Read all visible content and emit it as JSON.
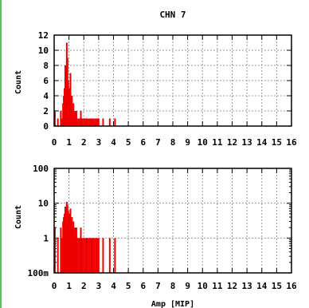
{
  "chart_data": [
    {
      "type": "bar",
      "title": "CHN 7",
      "xlabel": "",
      "ylabel": "Count",
      "xlim": [
        0,
        16
      ],
      "ylim": [
        0,
        12
      ],
      "yscale": "linear",
      "grid": true,
      "xticks": [
        "0",
        "1",
        "2",
        "3",
        "4",
        "5",
        "6",
        "7",
        "8",
        "9",
        "10",
        "11",
        "12",
        "13",
        "14",
        "15",
        "16"
      ],
      "yticks": [
        "0",
        "2",
        "4",
        "6",
        "8",
        "10",
        "12"
      ],
      "color": "#ee0000",
      "bins": {
        "x": [
          0.05,
          0.25,
          0.45,
          0.55,
          0.6,
          0.65,
          0.7,
          0.75,
          0.8,
          0.85,
          0.9,
          0.95,
          1.0,
          1.05,
          1.1,
          1.15,
          1.2,
          1.25,
          1.3,
          1.35,
          1.4,
          1.45,
          1.5,
          1.55,
          1.6,
          1.7,
          1.8,
          1.9,
          2.0,
          2.1,
          2.2,
          2.3,
          2.4,
          2.5,
          2.6,
          2.7,
          2.8,
          2.9,
          3.0,
          3.3,
          3.75,
          4.1
        ],
        "y": [
          2,
          1,
          2,
          1,
          3,
          4,
          5,
          8,
          7,
          11,
          9,
          6,
          5,
          4,
          7,
          3,
          4,
          2,
          3,
          1,
          2,
          1,
          2,
          1,
          1,
          1,
          2,
          1,
          1,
          1,
          1,
          1,
          1,
          1,
          1,
          1,
          1,
          1,
          1,
          1,
          1,
          1
        ]
      }
    },
    {
      "type": "bar",
      "title": "",
      "xlabel": "Amp [MIP]",
      "ylabel": "Count",
      "xlim": [
        0,
        16
      ],
      "ylim": [
        0.1,
        100
      ],
      "yscale": "log",
      "grid": true,
      "xticks": [
        "0",
        "1",
        "2",
        "3",
        "4",
        "5",
        "6",
        "7",
        "8",
        "9",
        "10",
        "11",
        "12",
        "13",
        "14",
        "15",
        "16"
      ],
      "yticks": [
        "100m",
        "1",
        "10",
        "100"
      ],
      "color": "#ee0000",
      "bins": {
        "x": [
          0.05,
          0.25,
          0.45,
          0.55,
          0.6,
          0.65,
          0.7,
          0.75,
          0.8,
          0.85,
          0.9,
          0.95,
          1.0,
          1.05,
          1.1,
          1.15,
          1.2,
          1.25,
          1.3,
          1.35,
          1.4,
          1.45,
          1.5,
          1.55,
          1.6,
          1.7,
          1.8,
          1.9,
          2.0,
          2.1,
          2.2,
          2.3,
          2.4,
          2.5,
          2.6,
          2.7,
          2.8,
          2.9,
          3.0,
          3.3,
          3.75,
          4.1
        ],
        "y": [
          2,
          1,
          2,
          1,
          3,
          4,
          5,
          8,
          7,
          11,
          9,
          6,
          5,
          4,
          7,
          3,
          4,
          2,
          3,
          1,
          2,
          1,
          2,
          1,
          1,
          1,
          2,
          1,
          1,
          1,
          1,
          1,
          1,
          1,
          1,
          1,
          1,
          1,
          1,
          1,
          1,
          1
        ]
      }
    }
  ]
}
